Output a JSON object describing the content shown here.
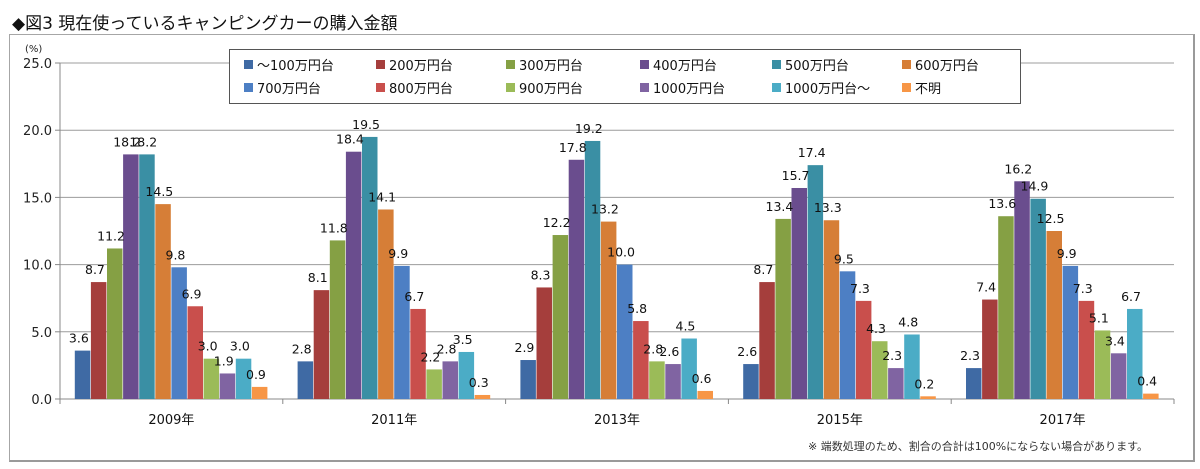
{
  "title": "◆図3 現在使っているキャンピングカーの購入金額",
  "footnote": "※ 端数処理のため、割合の合計は100%にならない場合があります。",
  "chart_data": {
    "type": "bar",
    "title": "現在使っているキャンピングカーの購入金額",
    "xlabel": "",
    "ylabel": "(%)",
    "unit_label": "(%)",
    "ylim": [
      0,
      25
    ],
    "yticks": [
      "0.0",
      "5.0",
      "10.0",
      "15.0",
      "20.0",
      "25.0"
    ],
    "ytick_values": [
      0,
      5,
      10,
      15,
      20,
      25
    ],
    "grid": true,
    "legend_position": "top-center",
    "categories": [
      "2009年",
      "2011年",
      "2013年",
      "2015年",
      "2017年"
    ],
    "series": [
      {
        "name": "〜100万円台",
        "color": "#3f6aa4",
        "values": [
          3.6,
          2.8,
          2.9,
          2.6,
          2.3
        ]
      },
      {
        "name": "200万円台",
        "color": "#a53e3c",
        "values": [
          8.7,
          8.1,
          8.3,
          8.7,
          7.4
        ]
      },
      {
        "name": "300万円台",
        "color": "#85a044",
        "values": [
          11.2,
          11.8,
          12.2,
          13.4,
          13.6
        ]
      },
      {
        "name": "400万円台",
        "color": "#6a4d8e",
        "values": [
          18.2,
          18.4,
          17.8,
          15.7,
          16.2
        ]
      },
      {
        "name": "500万円台",
        "color": "#3a8fa4",
        "values": [
          18.2,
          19.5,
          19.2,
          17.4,
          14.9
        ]
      },
      {
        "name": "600万円台",
        "color": "#d67e37",
        "values": [
          14.5,
          14.1,
          13.2,
          13.3,
          12.5
        ]
      },
      {
        "name": "700万円台",
        "color": "#4d7fc4",
        "values": [
          9.8,
          9.9,
          10.0,
          9.5,
          9.9
        ]
      },
      {
        "name": "800万円台",
        "color": "#c94f4c",
        "values": [
          6.9,
          6.7,
          5.8,
          7.3,
          7.3
        ]
      },
      {
        "name": "900万円台",
        "color": "#9bbb58",
        "values": [
          3.0,
          2.2,
          2.8,
          4.3,
          5.1
        ]
      },
      {
        "name": "1000万円台",
        "color": "#8064a2",
        "values": [
          1.9,
          2.8,
          2.6,
          2.3,
          3.4
        ]
      },
      {
        "name": "1000万円台〜",
        "color": "#4bacc6",
        "values": [
          3.0,
          3.5,
          4.5,
          4.8,
          6.7
        ]
      },
      {
        "name": "不明",
        "color": "#f79646",
        "values": [
          0.9,
          0.3,
          0.6,
          0.2,
          0.4
        ]
      }
    ]
  }
}
